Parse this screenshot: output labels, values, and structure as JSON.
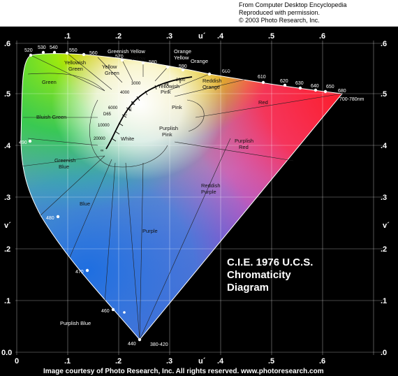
{
  "credit": {
    "line1": "From Computer Desktop Encyclopedia",
    "line2": "Reproduced with permission.",
    "line3": "© 2003 Photo Research, Inc."
  },
  "title": {
    "line1": "C.I.E. 1976 U.C.S.",
    "line2": "Chromaticity",
    "line3": "Diagram"
  },
  "footer": "Image courtesy of Photo Research, Inc. All rights reserved. www.photoresearch.com",
  "axes": {
    "u_label": "u´",
    "v_label": "v´",
    "u_ticks": [
      ".1",
      ".2",
      ".3",
      ".4",
      ".5",
      ".6"
    ],
    "u_ticks_bottom": [
      "0",
      ".1",
      ".2",
      ".3",
      ".4",
      ".5",
      ".6"
    ],
    "v_ticks": [
      ".6",
      ".5",
      ".4",
      ".3",
      ".2",
      ".1",
      "0.0"
    ],
    "v_ticks_right": [
      ".6",
      ".5",
      ".4",
      ".3",
      ".2",
      ".1",
      ".0"
    ]
  },
  "wavelengths": {
    "w520": "520",
    "w530": "530",
    "w540": "540",
    "w550": "550",
    "w560": "560",
    "w570": "570",
    "w580": "580",
    "w590": "590",
    "w600": "600",
    "w610": "610",
    "w620": "620",
    "w630": "630",
    "w640": "640",
    "w650": "650",
    "w680": "680",
    "w700": "700-780nm",
    "w490": "490",
    "w480": "480",
    "w470": "470",
    "w460": "460",
    "w440": "440",
    "w380": "380-420"
  },
  "regions": {
    "yellowish_green": [
      "Yellowish",
      "Green"
    ],
    "greenish_yellow": "Greenish Yellow",
    "yellow_green": [
      "Yellow",
      "Green"
    ],
    "yellow": "Yellow",
    "orange_yellow": [
      "Orange",
      "Yellow"
    ],
    "orange": "Orange",
    "green": "Green",
    "yellowish_pink": [
      "Yellowish",
      "Pink"
    ],
    "reddish_orange": [
      "Reddish",
      "Orange"
    ],
    "red": "Red",
    "pink": "Pink",
    "bluish_green": "Bluish Green",
    "purplish_pink": [
      "Purplish",
      "Pink"
    ],
    "purplish_red": [
      "Purplish",
      "Red"
    ],
    "white": "White",
    "greenish_blue": [
      "Greenish",
      "Blue"
    ],
    "reddish_purple": [
      "Reddish",
      "Purple"
    ],
    "blue": "Blue",
    "purple": "Purple",
    "purplish_blue": "Purplish Blue"
  },
  "planckian": {
    "t1500": "1500",
    "t2000": "2000",
    "t3000": "3000",
    "t4000": "4000",
    "t6000": "6000",
    "t10000": "10000",
    "t20000": "20000",
    "tinf": "∞",
    "sA": "A",
    "sB": "B",
    "sC": "C",
    "sE": "E",
    "sD65": "D65"
  }
}
